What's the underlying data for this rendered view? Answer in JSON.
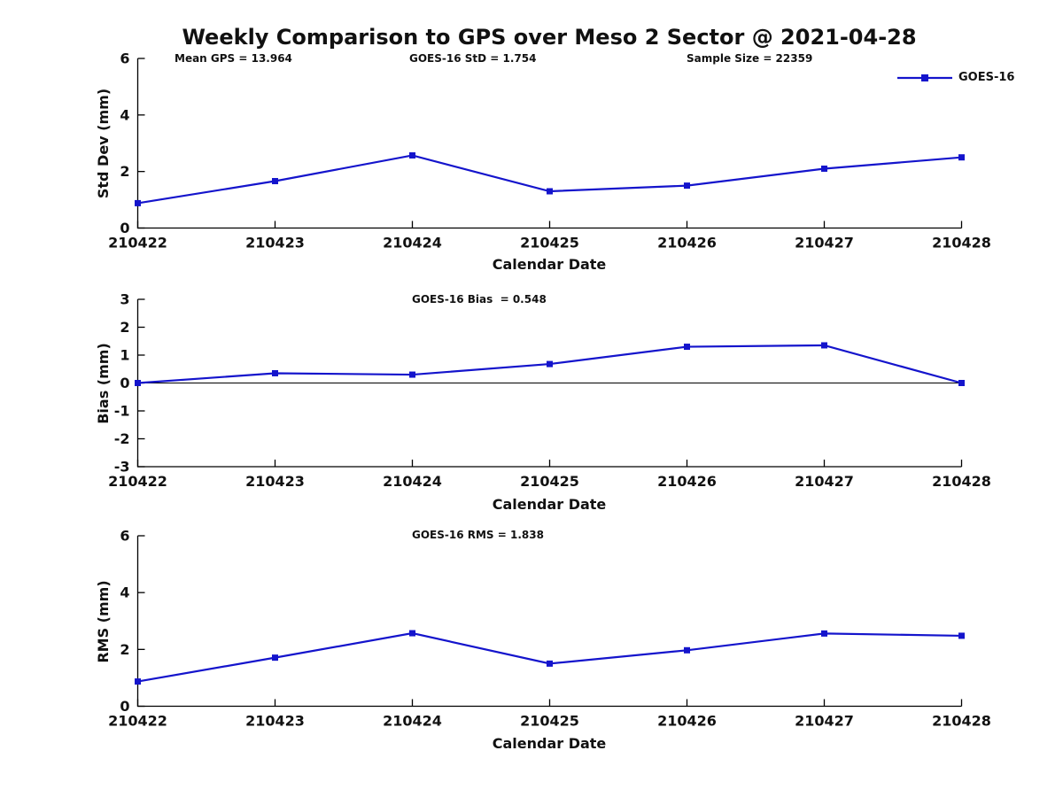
{
  "figure": {
    "title": "Weekly Comparison to GPS over Meso 2 Sector @ 2021-04-28",
    "background": "#ffffff",
    "text_color": "#111111",
    "accent_color": "#1414cc"
  },
  "legend": {
    "label": "GOES-16",
    "line_color": "#1414cc"
  },
  "chart_data": [
    {
      "type": "line",
      "title": "",
      "ylabel": "Std Dev (mm)",
      "xlabel": "Calendar Date",
      "ylim": [
        0,
        6
      ],
      "yticks": [
        0,
        2,
        4,
        6
      ],
      "categories": [
        "210422",
        "210423",
        "210424",
        "210425",
        "210426",
        "210427",
        "210428"
      ],
      "series": [
        {
          "name": "GOES-16",
          "values": [
            0.88,
            1.66,
            2.57,
            1.3,
            1.5,
            2.1,
            2.5
          ]
        }
      ],
      "line_color": "#1414cc",
      "marker": "square",
      "grid": false,
      "zero_line": false,
      "legend_position": "top-right",
      "annotations": [
        "Mean GPS = 13.964",
        "GOES-16 StD = 1.754",
        "Sample Size = 22359"
      ]
    },
    {
      "type": "line",
      "title": "",
      "ylabel": "Bias (mm)",
      "xlabel": "Calendar Date",
      "ylim": [
        -3,
        3
      ],
      "yticks": [
        -3,
        -2,
        -1,
        0,
        1,
        2,
        3
      ],
      "categories": [
        "210422",
        "210423",
        "210424",
        "210425",
        "210426",
        "210427",
        "210428"
      ],
      "series": [
        {
          "name": "GOES-16",
          "values": [
            0.0,
            0.35,
            0.3,
            0.68,
            1.3,
            1.35,
            0.0
          ]
        }
      ],
      "line_color": "#1414cc",
      "marker": "square",
      "grid": false,
      "zero_line": true,
      "legend_position": "none",
      "annotations": [
        "GOES-16 Bias  = 0.548"
      ]
    },
    {
      "type": "line",
      "title": "",
      "ylabel": "RMS (mm)",
      "xlabel": "Calendar Date",
      "ylim": [
        0,
        6
      ],
      "yticks": [
        0,
        2,
        4,
        6
      ],
      "categories": [
        "210422",
        "210423",
        "210424",
        "210425",
        "210426",
        "210427",
        "210428"
      ],
      "series": [
        {
          "name": "GOES-16",
          "values": [
            0.87,
            1.71,
            2.57,
            1.5,
            1.97,
            2.56,
            2.48
          ]
        }
      ],
      "line_color": "#1414cc",
      "marker": "square",
      "grid": false,
      "zero_line": false,
      "legend_position": "none",
      "annotations": [
        "GOES-16 RMS = 1.838"
      ]
    }
  ]
}
